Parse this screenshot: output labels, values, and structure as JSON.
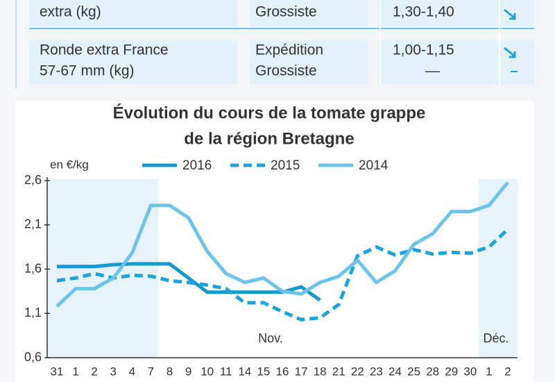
{
  "table": {
    "rows": [
      {
        "product": [
          "extra (kg)"
        ],
        "market": [
          "Grossiste"
        ],
        "price": [
          "1,30-1,40"
        ]
      },
      {
        "product": [
          "Ronde extra France",
          "57-67 mm (kg)"
        ],
        "market": [
          "Expédition",
          "Grossiste"
        ],
        "price": [
          "1,00-1,15",
          "—"
        ]
      }
    ]
  },
  "chart_data": {
    "type": "line",
    "title": [
      "Évolution du cours de la tomate grappe",
      "de la région Bretagne"
    ],
    "y_label": "en €/kg",
    "annotations": [
      "Nov.",
      "Déc."
    ],
    "categories": [
      "31",
      "1",
      "2",
      "3",
      "4",
      "7",
      "8",
      "9",
      "10",
      "11",
      "14",
      "15",
      "16",
      "17",
      "18",
      "21",
      "22",
      "23",
      "24",
      "25",
      "28",
      "29",
      "30",
      "1",
      "2"
    ],
    "series": [
      {
        "name": "2016",
        "color": "#1498d2",
        "style": "solid",
        "values": [
          1.63,
          1.63,
          1.63,
          1.65,
          1.66,
          1.66,
          1.66,
          1.5,
          1.34,
          1.34,
          1.34,
          1.34,
          1.34,
          1.4,
          1.25,
          null,
          null,
          null,
          null,
          null,
          null,
          null,
          null,
          null,
          null
        ]
      },
      {
        "name": "2015",
        "color": "#1aa3dc",
        "style": "dashed",
        "values": [
          1.47,
          1.5,
          1.55,
          1.5,
          1.53,
          1.52,
          1.47,
          1.45,
          1.42,
          1.38,
          1.22,
          1.22,
          1.12,
          1.03,
          1.05,
          1.2,
          1.75,
          1.85,
          1.76,
          1.82,
          1.77,
          1.79,
          1.78,
          1.85,
          2.05
        ]
      },
      {
        "name": "2014",
        "color": "#6cc4ec",
        "style": "solid",
        "values": [
          1.18,
          1.38,
          1.38,
          1.5,
          1.78,
          2.32,
          2.32,
          2.18,
          1.8,
          1.55,
          1.45,
          1.5,
          1.35,
          1.32,
          1.45,
          1.52,
          1.7,
          1.45,
          1.58,
          1.88,
          2.0,
          2.25,
          2.25,
          2.32,
          2.58
        ]
      }
    ],
    "ylim": [
      0.6,
      2.6
    ],
    "yticks": [
      {
        "value": 0.6,
        "label": "0,6"
      },
      {
        "value": 1.1,
        "label": "1,1"
      },
      {
        "value": 1.6,
        "label": "1,6"
      },
      {
        "value": 2.1,
        "label": "2,1"
      },
      {
        "value": 2.6,
        "label": "2,6"
      }
    ]
  }
}
